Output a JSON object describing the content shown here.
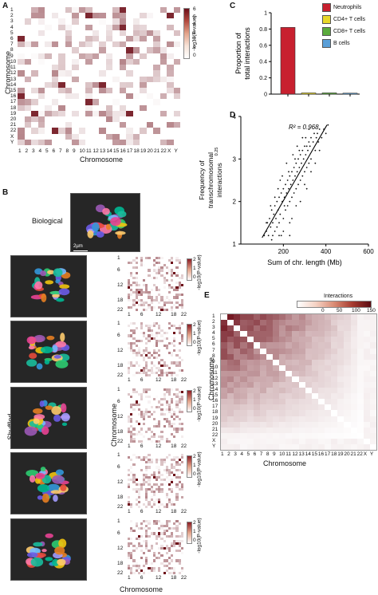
{
  "panels": {
    "A": {
      "letter": "A",
      "xlabel": "Chromosome",
      "ylabel": "Chromosome",
      "colorbar_label": "-log10(P-value)",
      "colorbar_ticks": [
        "6",
        "5",
        "4",
        "3",
        "2",
        "1",
        "0"
      ],
      "x_ticks": [
        "1",
        "2",
        "3",
        "4",
        "5",
        "6",
        "7",
        "8",
        "9",
        "10",
        "11",
        "12",
        "13",
        "14",
        "15",
        "16",
        "17",
        "18",
        "19",
        "20",
        "21",
        "22",
        "X",
        "Y"
      ],
      "y_ticks": [
        "1",
        "2",
        "3",
        "4",
        "5",
        "6",
        "7",
        "8",
        "9",
        "10",
        "11",
        "12",
        "13",
        "14",
        "15",
        "16",
        "17",
        "18",
        "19",
        "20",
        "21",
        "22",
        "X",
        "Y"
      ]
    },
    "B": {
      "letter": "B",
      "biological_label": "Biological",
      "scale_bar_label": "2µm",
      "shuffled_label": "Shuffled",
      "ylabel": "Chromosome",
      "xlabel": "Chromosome",
      "colorbar_label": "-log10(P-value)",
      "tick_labels": [
        "1",
        "6",
        "12",
        "18",
        "22"
      ],
      "colorbar_ticks": [
        "2",
        "1",
        "0"
      ]
    },
    "C": {
      "letter": "C",
      "ylabel_line1": "Proportion of",
      "ylabel_line2": "total interactions",
      "y_ticks": [
        "0",
        "0.2",
        "0.4",
        "0.6",
        "0.8",
        "1"
      ],
      "legend": [
        {
          "label": "Neutrophils",
          "color": "#c8202f"
        },
        {
          "label": "CD4+ T cells",
          "color": "#e8d82a"
        },
        {
          "label": "CD8+ T cells",
          "color": "#5aab3c"
        },
        {
          "label": "B cells",
          "color": "#5a9fd8"
        }
      ]
    },
    "D": {
      "letter": "D",
      "r2_label": "R² = 0.968",
      "xlabel": "Sum of chr. length (Mb)",
      "ylabel_line1": "Frequency of",
      "ylabel_line2": "transchromosomal",
      "ylabel_line3": "interactions",
      "ylabel_sup": "0.25",
      "x_ticks": [
        "200",
        "400",
        "600"
      ],
      "y_ticks": [
        "1",
        "2",
        "3",
        "4"
      ]
    },
    "E": {
      "letter": "E",
      "colorbar_title": "Interactions",
      "colorbar_ticks": [
        "0",
        "50",
        "100",
        "150"
      ],
      "xlabel": "Chromosome",
      "ylabel": "Chromosome",
      "x_ticks": [
        "1",
        "2",
        "3",
        "4",
        "5",
        "6",
        "7",
        "8",
        "9",
        "10",
        "11",
        "12",
        "13",
        "14",
        "15",
        "16",
        "17",
        "18",
        "19",
        "20",
        "21",
        "22",
        "X",
        "Y"
      ],
      "y_ticks": [
        "1",
        "2",
        "3",
        "4",
        "5",
        "6",
        "7",
        "8",
        "9",
        "10",
        "11",
        "12",
        "13",
        "14",
        "15",
        "16",
        "17",
        "18",
        "19",
        "20",
        "21",
        "22",
        "X",
        "Y"
      ]
    }
  },
  "chart_data": [
    {
      "type": "bar",
      "categories": [
        "Neutrophils",
        "CD4+ T cells",
        "CD8+ T cells",
        "B cells"
      ],
      "values": [
        0.82,
        0.015,
        0.015,
        0.012
      ],
      "colors": [
        "#c8202f",
        "#e8d82a",
        "#5aab3c",
        "#5a9fd8"
      ],
      "ylabel": "Proportion of total interactions",
      "ylim": [
        0,
        1
      ],
      "legend": "top-right"
    },
    {
      "type": "scatter",
      "xlabel": "Sum of chr. length (Mb)",
      "ylabel": "Frequency of transchromosomal interactions^0.25",
      "xlim": [
        0,
        600
      ],
      "ylim": [
        1,
        4
      ],
      "annotation": "R² = 0.968",
      "fit_line": [
        [
          100,
          1.15
        ],
        [
          405,
          3.8
        ]
      ],
      "points": [
        [
          110,
          1.2
        ],
        [
          120,
          1.3
        ],
        [
          125,
          1.5
        ],
        [
          130,
          1.2
        ],
        [
          135,
          1.6
        ],
        [
          140,
          1.4
        ],
        [
          145,
          1.8
        ],
        [
          150,
          1.5
        ],
        [
          150,
          1.2
        ],
        [
          155,
          1.7
        ],
        [
          160,
          1.9
        ],
        [
          160,
          1.3
        ],
        [
          165,
          1.6
        ],
        [
          170,
          2.0
        ],
        [
          170,
          1.4
        ],
        [
          175,
          1.8
        ],
        [
          180,
          2.1
        ],
        [
          180,
          1.5
        ],
        [
          185,
          1.7
        ],
        [
          190,
          2.2
        ],
        [
          190,
          1.2
        ],
        [
          195,
          2.0
        ],
        [
          200,
          2.3
        ],
        [
          200,
          1.6
        ],
        [
          205,
          2.1
        ],
        [
          210,
          2.4
        ],
        [
          210,
          1.8
        ],
        [
          215,
          2.2
        ],
        [
          220,
          2.5
        ],
        [
          220,
          1.9
        ],
        [
          225,
          2.3
        ],
        [
          230,
          2.6
        ],
        [
          230,
          2.0
        ],
        [
          235,
          2.4
        ],
        [
          240,
          2.7
        ],
        [
          240,
          2.1
        ],
        [
          245,
          2.5
        ],
        [
          250,
          2.8
        ],
        [
          250,
          2.2
        ],
        [
          255,
          2.6
        ],
        [
          260,
          2.9
        ],
        [
          260,
          2.3
        ],
        [
          265,
          2.7
        ],
        [
          270,
          3.0
        ],
        [
          270,
          2.4
        ],
        [
          275,
          2.8
        ],
        [
          280,
          3.1
        ],
        [
          280,
          2.5
        ],
        [
          285,
          2.9
        ],
        [
          290,
          3.2
        ],
        [
          290,
          2.6
        ],
        [
          295,
          3.0
        ],
        [
          300,
          3.3
        ],
        [
          300,
          2.7
        ],
        [
          305,
          3.1
        ],
        [
          310,
          3.3
        ],
        [
          310,
          2.8
        ],
        [
          315,
          3.2
        ],
        [
          320,
          3.4
        ],
        [
          320,
          2.9
        ],
        [
          325,
          3.3
        ],
        [
          330,
          3.5
        ],
        [
          330,
          3.0
        ],
        [
          340,
          3.4
        ],
        [
          345,
          3.6
        ],
        [
          350,
          3.2
        ],
        [
          355,
          3.5
        ],
        [
          360,
          3.6
        ],
        [
          365,
          3.4
        ],
        [
          370,
          3.7
        ],
        [
          380,
          3.5
        ],
        [
          390,
          3.7
        ],
        [
          400,
          3.6
        ],
        [
          410,
          3.8
        ],
        [
          200,
          1.3
        ],
        [
          230,
          1.5
        ],
        [
          260,
          1.9
        ],
        [
          280,
          2.0
        ],
        [
          310,
          2.3
        ],
        [
          120,
          1.5
        ],
        [
          140,
          1.9
        ],
        [
          175,
          2.3
        ],
        [
          195,
          2.6
        ],
        [
          215,
          2.9
        ],
        [
          245,
          3.1
        ],
        [
          265,
          3.3
        ],
        [
          290,
          3.5
        ],
        [
          230,
          1.2
        ],
        [
          180,
          1.2
        ],
        [
          300,
          2.4
        ],
        [
          330,
          2.7
        ],
        [
          350,
          2.9
        ],
        [
          370,
          3.2
        ],
        [
          160,
          2.1
        ],
        [
          145,
          1.1
        ],
        [
          205,
          1.9
        ],
        [
          225,
          2.7
        ],
        [
          255,
          3.0
        ],
        [
          275,
          3.2
        ],
        [
          305,
          3.5
        ],
        [
          320,
          3.7
        ],
        [
          185,
          2.5
        ],
        [
          240,
          1.6
        ]
      ]
    }
  ]
}
